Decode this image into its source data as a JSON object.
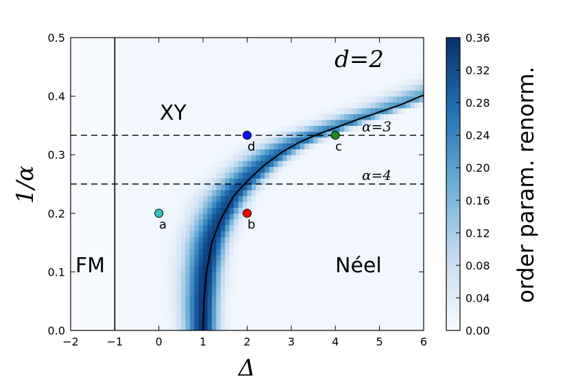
{
  "chart_data": {
    "type": "heatmap",
    "title": "",
    "xlabel": "Δ",
    "ylabel": "1/α",
    "xlim": [
      -2,
      6
    ],
    "ylim": [
      0,
      0.5
    ],
    "x_ticks": [
      -2,
      -1,
      0,
      1,
      2,
      3,
      4,
      5,
      6
    ],
    "x_tick_labels": [
      "−2",
      "−1",
      "0",
      "1",
      "2",
      "3",
      "4",
      "5",
      "6"
    ],
    "y_ticks": [
      0.0,
      0.1,
      0.2,
      0.3,
      0.4,
      0.5
    ],
    "y_tick_labels": [
      "0.0",
      "0.1",
      "0.2",
      "0.3",
      "0.4",
      "0.5"
    ],
    "grid": false,
    "colormap": "Blues",
    "colorbar": {
      "label": "order param. renorm.",
      "range": [
        0,
        0.36
      ],
      "ticks": [
        0.0,
        0.04,
        0.08,
        0.12,
        0.16,
        0.2,
        0.24,
        0.28,
        0.32,
        0.36
      ],
      "tick_labels": [
        "0.00",
        "0.04",
        "0.08",
        "0.12",
        "0.16",
        "0.20",
        "0.24",
        "0.28",
        "0.32",
        "0.36"
      ],
      "color_low": "#f7fbff",
      "color_high": "#08306b"
    },
    "phase_boundary_fm": {
      "x": -1,
      "y_range": [
        0,
        0.5
      ]
    },
    "phase_boundary_xy_neel": {
      "x": [
        1.0,
        1.02,
        1.08,
        1.2,
        1.4,
        1.7,
        2.0,
        2.4,
        2.8,
        3.2,
        3.6,
        4.0,
        4.5,
        5.0,
        5.5,
        6.0
      ],
      "y": [
        0.0,
        0.05,
        0.1,
        0.15,
        0.19,
        0.23,
        0.255,
        0.283,
        0.305,
        0.322,
        0.335,
        0.346,
        0.36,
        0.373,
        0.386,
        0.402
      ]
    },
    "dashed_lines": [
      {
        "label": "α=3",
        "y": 0.3333
      },
      {
        "label": "α=4",
        "y": 0.25
      }
    ],
    "points": [
      {
        "label": "a",
        "x": 0,
        "y": 0.2,
        "color": "#2ec4c0"
      },
      {
        "label": "b",
        "x": 2,
        "y": 0.2,
        "color": "#ff0000"
      },
      {
        "label": "c",
        "x": 4,
        "y": 0.3333,
        "color": "#1f8c1f"
      },
      {
        "label": "d",
        "x": 2,
        "y": 0.3333,
        "color": "#1010ff"
      }
    ],
    "region_labels": [
      "FM",
      "XY",
      "Néel"
    ],
    "annotation": "d=2"
  }
}
